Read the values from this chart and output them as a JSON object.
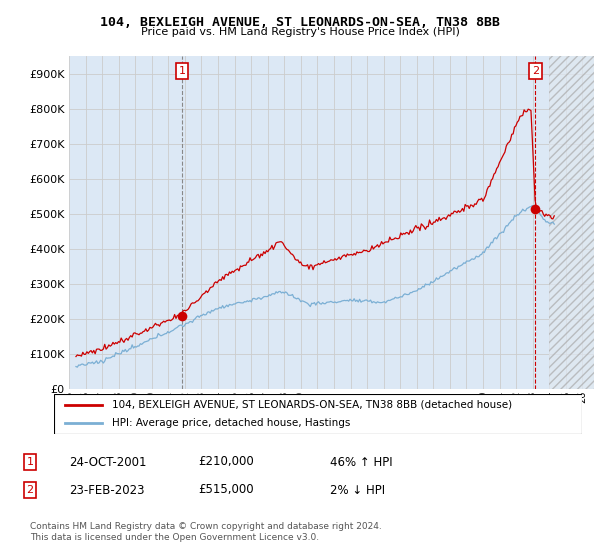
{
  "title": "104, BEXLEIGH AVENUE, ST LEONARDS-ON-SEA, TN38 8BB",
  "subtitle": "Price paid vs. HM Land Registry's House Price Index (HPI)",
  "yticks": [
    0,
    100000,
    200000,
    300000,
    400000,
    500000,
    600000,
    700000,
    800000,
    900000
  ],
  "ylim": [
    0,
    950000
  ],
  "xlim_start": 1995.3,
  "xlim_end": 2026.7,
  "hatch_start": 2024.0,
  "hpi_color": "#7bafd4",
  "price_color": "#cc0000",
  "marker1_date_x": 2001.82,
  "marker1_price": 210000,
  "marker2_date_x": 2023.15,
  "marker2_price": 515000,
  "legend_line1": "104, BEXLEIGH AVENUE, ST LEONARDS-ON-SEA, TN38 8BB (detached house)",
  "legend_line2": "HPI: Average price, detached house, Hastings",
  "annotation1_date": "24-OCT-2001",
  "annotation1_price": "£210,000",
  "annotation1_hpi": "46% ↑ HPI",
  "annotation2_date": "23-FEB-2023",
  "annotation2_price": "£515,000",
  "annotation2_hpi": "2% ↓ HPI",
  "footer1": "Contains HM Land Registry data © Crown copyright and database right 2024.",
  "footer2": "This data is licensed under the Open Government Licence v3.0.",
  "bg_color": "#ffffff",
  "grid_color": "#cccccc",
  "plot_bg": "#dce8f5"
}
